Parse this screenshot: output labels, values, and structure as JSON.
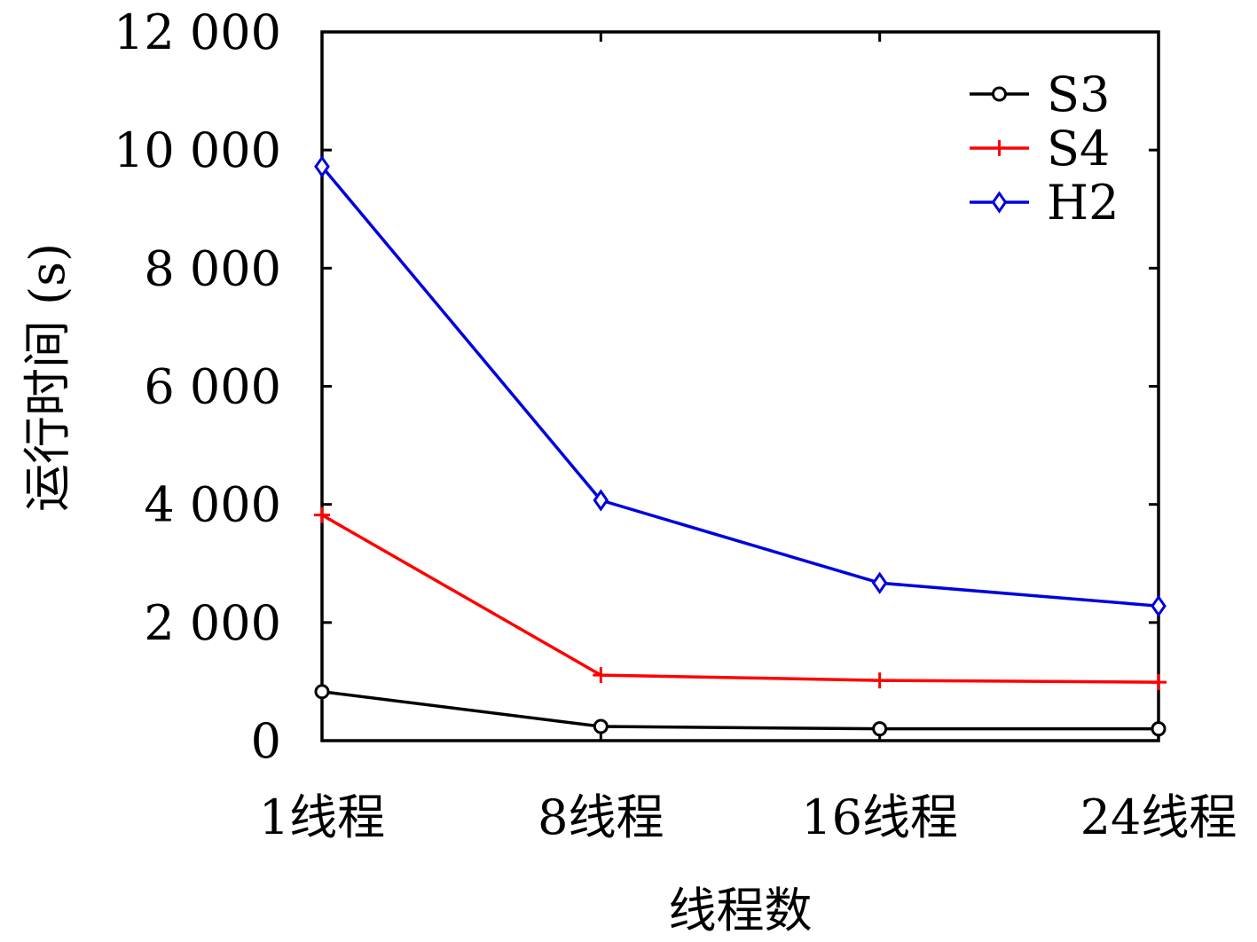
{
  "chart_data": {
    "type": "line",
    "title": "",
    "xlabel": "线程数",
    "ylabel": "运行时间 (s)",
    "categories": [
      "1线程",
      "8线程",
      "16线程",
      "24线程"
    ],
    "ylim": [
      0,
      12000
    ],
    "yticks": [
      0,
      2000,
      4000,
      6000,
      8000,
      10000,
      12000
    ],
    "ytick_labels": [
      "0",
      "2 000",
      "4 000",
      "6 000",
      "8 000",
      "10 000",
      "12 000"
    ],
    "grid": false,
    "legend_position": "top-right",
    "series": [
      {
        "name": "S3",
        "color": "#000000",
        "marker": "circle",
        "values": [
          830,
          240,
          200,
          200
        ]
      },
      {
        "name": "S4",
        "color": "#ff0000",
        "marker": "plus",
        "values": [
          3820,
          1110,
          1020,
          990
        ]
      },
      {
        "name": "H2",
        "color": "#0000dd",
        "marker": "diamond",
        "values": [
          9720,
          4070,
          2670,
          2280
        ]
      }
    ]
  }
}
